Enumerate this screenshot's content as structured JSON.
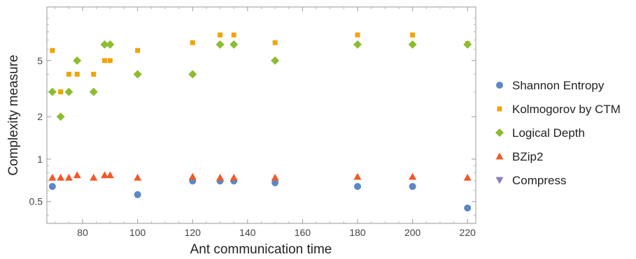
{
  "chart_data": {
    "type": "scatter",
    "title": "",
    "xlabel": "Ant communication time",
    "ylabel": "Complexity measure",
    "x_scale": "linear",
    "y_scale": "log",
    "xlim": [
      67,
      223
    ],
    "ylim": [
      0.35,
      12
    ],
    "x_ticks": [
      80,
      100,
      120,
      140,
      160,
      180,
      200,
      220
    ],
    "x_tick_labels": [
      "80",
      "100",
      "120",
      "140",
      "160",
      "180",
      "200",
      "220"
    ],
    "y_ticks": [
      0.5,
      1,
      2,
      5
    ],
    "y_tick_labels": [
      "0.5",
      "1",
      "2",
      "5"
    ],
    "grid": false,
    "legend_position": "right",
    "series": [
      {
        "name": "Shannon Entropy",
        "marker": "circle",
        "color": "#5b88c6",
        "points": [
          [
            69,
            0.64
          ],
          [
            100,
            0.56
          ],
          [
            120,
            0.7
          ],
          [
            130,
            0.7
          ],
          [
            135,
            0.7
          ],
          [
            150,
            0.68
          ],
          [
            180,
            0.64
          ],
          [
            200,
            0.64
          ],
          [
            220,
            0.45
          ]
        ]
      },
      {
        "name": "Kolmogorov by CTM",
        "marker": "square",
        "color": "#f0a30a",
        "points": [
          [
            69,
            5.9
          ],
          [
            72,
            3.0
          ],
          [
            75,
            4.0
          ],
          [
            78,
            4.0
          ],
          [
            84,
            4.0
          ],
          [
            88,
            5.0
          ],
          [
            90,
            5.0
          ],
          [
            100,
            5.9
          ],
          [
            120,
            6.7
          ],
          [
            130,
            7.6
          ],
          [
            135,
            7.6
          ],
          [
            150,
            6.7
          ],
          [
            180,
            7.6
          ],
          [
            200,
            7.6
          ],
          [
            220,
            6.6
          ]
        ]
      },
      {
        "name": "Logical Depth",
        "marker": "diamond",
        "color": "#8bbd2f",
        "points": [
          [
            69,
            3.0
          ],
          [
            72,
            2.0
          ],
          [
            75,
            3.0
          ],
          [
            78,
            5.0
          ],
          [
            84,
            3.0
          ],
          [
            88,
            6.5
          ],
          [
            90,
            6.5
          ],
          [
            100,
            4.0
          ],
          [
            120,
            4.0
          ],
          [
            130,
            6.5
          ],
          [
            135,
            6.5
          ],
          [
            150,
            5.0
          ],
          [
            180,
            6.5
          ],
          [
            200,
            6.5
          ],
          [
            220,
            6.5
          ]
        ]
      },
      {
        "name": "BZip2",
        "marker": "triangle-up",
        "color": "#f05a28",
        "points": [
          [
            69,
            0.74
          ],
          [
            72,
            0.74
          ],
          [
            75,
            0.74
          ],
          [
            78,
            0.77
          ],
          [
            84,
            0.74
          ],
          [
            88,
            0.77
          ],
          [
            90,
            0.77
          ],
          [
            100,
            0.74
          ],
          [
            120,
            0.75
          ],
          [
            130,
            0.74
          ],
          [
            135,
            0.74
          ],
          [
            150,
            0.74
          ],
          [
            180,
            0.75
          ],
          [
            200,
            0.75
          ],
          [
            220,
            0.74
          ]
        ]
      },
      {
        "name": "Compress",
        "marker": "triangle-down",
        "color": "#8e7cc3",
        "points": []
      }
    ]
  }
}
